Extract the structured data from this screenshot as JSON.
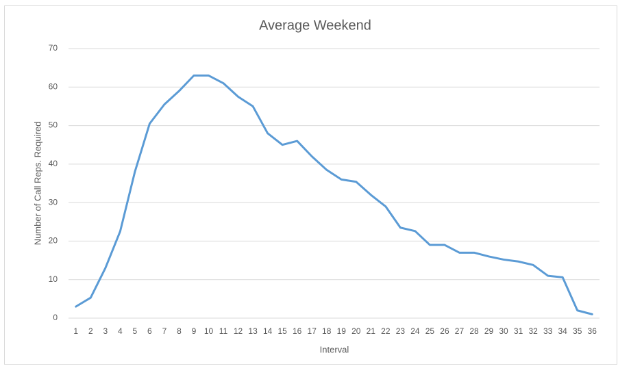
{
  "chart_data": {
    "type": "line",
    "title": "Average Weekend",
    "x_label": "Interval",
    "y_label": "Number of Call Reps. Required",
    "categories": [
      "1",
      "2",
      "3",
      "4",
      "5",
      "6",
      "7",
      "8",
      "9",
      "10",
      "11",
      "12",
      "13",
      "14",
      "15",
      "16",
      "17",
      "18",
      "19",
      "20",
      "21",
      "22",
      "23",
      "24",
      "25",
      "26",
      "27",
      "28",
      "29",
      "30",
      "31",
      "32",
      "33",
      "34",
      "35",
      "36"
    ],
    "series": [
      {
        "name": "Average Weekend",
        "color": "#5b9bd5",
        "values": [
          3,
          5.3,
          13,
          22.5,
          38,
          50.5,
          55.5,
          59,
          63,
          63,
          61,
          57.5,
          55,
          48,
          45,
          46,
          42,
          38.5,
          36,
          35.4,
          32,
          29,
          23.5,
          22.6,
          19,
          19,
          17,
          17,
          16,
          15.2,
          14.7,
          13.8,
          11,
          10.6,
          2,
          1
        ]
      }
    ],
    "ylim": [
      0,
      70
    ],
    "yticks": [
      0,
      10,
      20,
      30,
      40,
      50,
      60,
      70
    ],
    "grid": true
  }
}
